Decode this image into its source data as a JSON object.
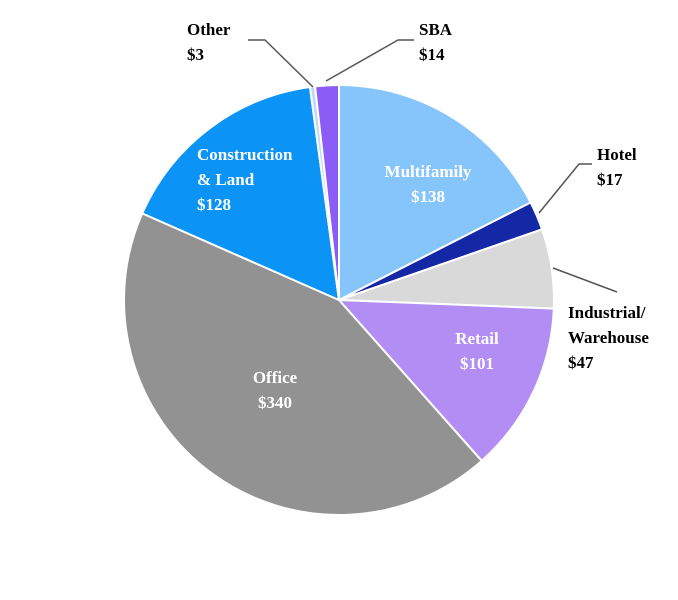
{
  "chart_data": {
    "type": "pie",
    "title": "",
    "start_angle_deg": 0,
    "direction": "clockwise",
    "slices": [
      {
        "name": "Multifamily",
        "label": [
          "Multifamily",
          "$138"
        ],
        "value": 138,
        "color": "#85c5fb",
        "label_color": "#ffffff",
        "label_mode": "inside"
      },
      {
        "name": "Hotel",
        "label": [
          "Hotel",
          "$17"
        ],
        "value": 17,
        "color": "#1428a6",
        "label_color": "#000000",
        "label_mode": "outside"
      },
      {
        "name": "Industrial/ Warehouse",
        "label": [
          "Industrial/",
          "Warehouse",
          "$47"
        ],
        "value": 47,
        "color": "#d9d9d9",
        "label_color": "#000000",
        "label_mode": "outside"
      },
      {
        "name": "Retail",
        "label": [
          "Retail",
          "$101"
        ],
        "value": 101,
        "color": "#b18df4",
        "label_color": "#ffffff",
        "label_mode": "inside"
      },
      {
        "name": "Office",
        "label": [
          "Office",
          "$340"
        ],
        "value": 340,
        "color": "#929292",
        "label_color": "#ffffff",
        "label_mode": "inside"
      },
      {
        "name": "Construction & Land",
        "label": [
          "Construction",
          "& Land",
          "$128"
        ],
        "value": 128,
        "color": "#0b93f6",
        "label_color": "#ffffff",
        "label_mode": "inside"
      },
      {
        "name": "Other",
        "label": [
          "Other",
          "$3"
        ],
        "value": 3,
        "color": "#bcd9f6",
        "label_color": "#000000",
        "label_mode": "outside"
      },
      {
        "name": "SBA",
        "label": [
          "SBA",
          "$14"
        ],
        "value": 14,
        "color": "#8b5cf6",
        "label_color": "#000000",
        "label_mode": "outside"
      }
    ]
  }
}
